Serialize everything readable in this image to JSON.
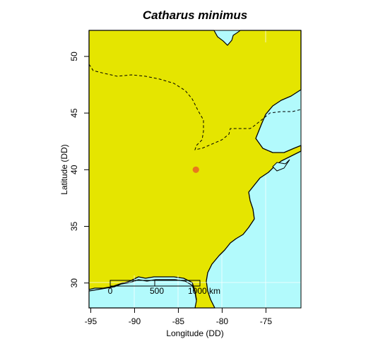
{
  "title": "Catharus minimus",
  "x_axis": {
    "label": "Longitude (DD)",
    "ticks": [
      {
        "value": -95,
        "label": "-95"
      },
      {
        "value": -90,
        "label": "-90"
      },
      {
        "value": -85,
        "label": "-85"
      },
      {
        "value": -80,
        "label": "-80"
      },
      {
        "value": -75,
        "label": "-75"
      }
    ]
  },
  "y_axis": {
    "label": "Latitude (DD)",
    "ticks": [
      {
        "value": 30,
        "label": "30"
      },
      {
        "value": 35,
        "label": "35"
      },
      {
        "value": 40,
        "label": "40"
      },
      {
        "value": 45,
        "label": "45"
      },
      {
        "value": 50,
        "label": "50"
      }
    ]
  },
  "extent": {
    "lon": [
      -95.2,
      -71.0
    ],
    "lat": [
      27.8,
      52.3
    ]
  },
  "colors": {
    "land": "#e5e500",
    "water": "#b2fafc",
    "point": "#e8781e",
    "border": "#000000",
    "grid": "#ffffff"
  },
  "occurrence_points": [
    {
      "lon": -83.0,
      "lat": 40.0
    }
  ],
  "scale_bar": {
    "labels": [
      "0",
      "500",
      "1000 km"
    ]
  }
}
